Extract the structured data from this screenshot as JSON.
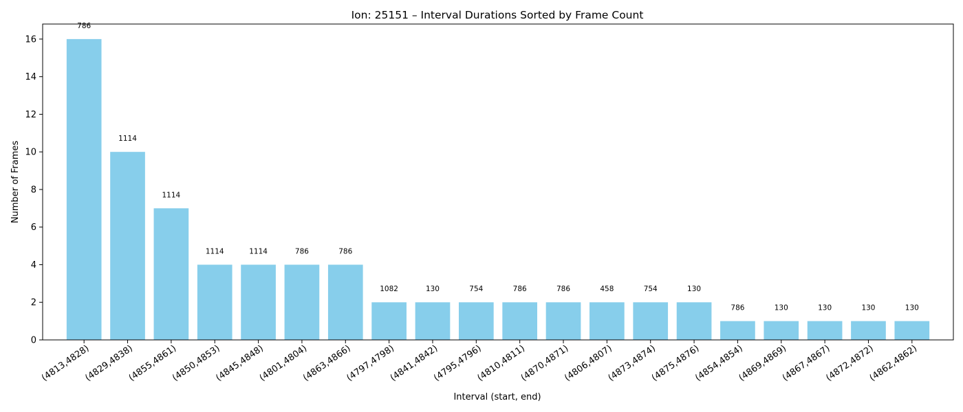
{
  "chart_data": {
    "type": "bar",
    "title": "Ion: 25151 – Interval Durations Sorted by Frame Count",
    "xlabel": "Interval (start, end)",
    "ylabel": "Number of Frames",
    "ylim": [
      0,
      16.8
    ],
    "yticks": [
      0,
      2,
      4,
      6,
      8,
      10,
      12,
      14,
      16
    ],
    "bar_color": "#87ceeb",
    "grid": false,
    "categories": [
      "(4813,4828)",
      "(4829,4838)",
      "(4855,4861)",
      "(4850,4853)",
      "(4845,4848)",
      "(4801,4804)",
      "(4863,4866)",
      "(4797,4798)",
      "(4841,4842)",
      "(4795,4796)",
      "(4810,4811)",
      "(4870,4871)",
      "(4806,4807)",
      "(4873,4874)",
      "(4875,4876)",
      "(4854,4854)",
      "(4869,4869)",
      "(4867,4867)",
      "(4872,4872)",
      "(4862,4862)"
    ],
    "values": [
      16,
      10,
      7,
      4,
      4,
      4,
      4,
      2,
      2,
      2,
      2,
      2,
      2,
      2,
      2,
      1,
      1,
      1,
      1,
      1
    ],
    "bar_labels": [
      "786",
      "1114",
      "1114",
      "1114",
      "1114",
      "786",
      "786",
      "1082",
      "130",
      "754",
      "786",
      "786",
      "458",
      "754",
      "130",
      "786",
      "130",
      "130",
      "130",
      "130"
    ]
  }
}
